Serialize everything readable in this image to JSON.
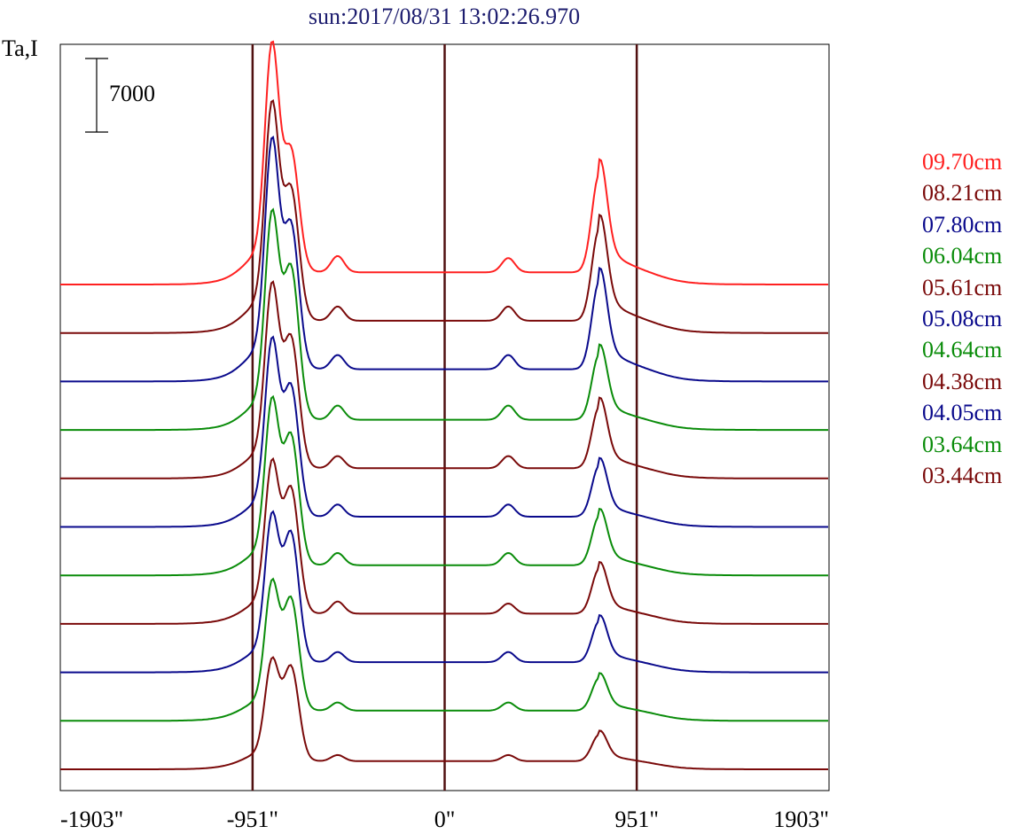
{
  "title": "sun:2017/08/31 13:02:26.970",
  "ylabel": "Ta,I",
  "colors": {
    "red": "#ff2020",
    "maroon": "#7a0a0a",
    "navy": "#0a0a8c",
    "green": "#0a8c0a",
    "vline": "#501010"
  },
  "chart_data": {
    "type": "line",
    "title": "sun:2017/08/31 13:02:26.970",
    "ylabel": "Ta,I",
    "xlabel": "",
    "xlim": [
      -1903,
      1903
    ],
    "x_unit": "arcsec",
    "x_ticks": [
      {
        "value": -1903,
        "label": "-1903\""
      },
      {
        "value": -951,
        "label": "-951\""
      },
      {
        "value": 0,
        "label": "0\""
      },
      {
        "value": 951,
        "label": "951\""
      },
      {
        "value": 1903,
        "label": "1903\""
      }
    ],
    "vertical_lines": [
      -951,
      0,
      951
    ],
    "scale_bar": {
      "value": 7000,
      "label": "7000"
    },
    "series": [
      {
        "name": "09.70cm",
        "color": "#ff2020",
        "baseline_index": 0,
        "amp": {
          "p1": 1.0,
          "p2": 0.55,
          "b1": 0.08,
          "b2": 0.07,
          "r": 0.48,
          "plateau": 0.06
        }
      },
      {
        "name": "08.21cm",
        "color": "#7a0a0a",
        "baseline_index": 1,
        "amp": {
          "p1": 0.95,
          "p2": 0.6,
          "b1": 0.07,
          "b2": 0.07,
          "r": 0.45,
          "plateau": 0.06
        }
      },
      {
        "name": "07.80cm",
        "color": "#0a0a8c",
        "baseline_index": 2,
        "amp": {
          "p1": 1.0,
          "p2": 0.66,
          "b1": 0.07,
          "b2": 0.07,
          "r": 0.43,
          "plateau": 0.06
        }
      },
      {
        "name": "06.04cm",
        "color": "#0a8c0a",
        "baseline_index": 3,
        "amp": {
          "p1": 0.9,
          "p2": 0.7,
          "b1": 0.07,
          "b2": 0.07,
          "r": 0.32,
          "plateau": 0.05
        }
      },
      {
        "name": "05.61cm",
        "color": "#7a0a0a",
        "baseline_index": 4,
        "amp": {
          "p1": 0.8,
          "p2": 0.6,
          "b1": 0.06,
          "b2": 0.06,
          "r": 0.3,
          "plateau": 0.05
        }
      },
      {
        "name": "05.08cm",
        "color": "#0a0a8c",
        "baseline_index": 5,
        "amp": {
          "p1": 0.77,
          "p2": 0.6,
          "b1": 0.06,
          "b2": 0.06,
          "r": 0.25,
          "plateau": 0.05
        }
      },
      {
        "name": "04.64cm",
        "color": "#0a8c0a",
        "baseline_index": 6,
        "amp": {
          "p1": 0.72,
          "p2": 0.6,
          "b1": 0.06,
          "b2": 0.06,
          "r": 0.24,
          "plateau": 0.05
        }
      },
      {
        "name": "04.38cm",
        "color": "#7a0a0a",
        "baseline_index": 7,
        "amp": {
          "p1": 0.66,
          "p2": 0.58,
          "b1": 0.06,
          "b2": 0.05,
          "r": 0.22,
          "plateau": 0.05
        }
      },
      {
        "name": "04.05cm",
        "color": "#0a0a8c",
        "baseline_index": 8,
        "amp": {
          "p1": 0.64,
          "p2": 0.6,
          "b1": 0.05,
          "b2": 0.05,
          "r": 0.2,
          "plateau": 0.05
        }
      },
      {
        "name": "03.64cm",
        "color": "#0a8c0a",
        "baseline_index": 9,
        "amp": {
          "p1": 0.56,
          "p2": 0.52,
          "b1": 0.04,
          "b2": 0.04,
          "r": 0.16,
          "plateau": 0.05
        }
      },
      {
        "name": "03.44cm",
        "color": "#7a0a0a",
        "baseline_index": 10,
        "amp": {
          "p1": 0.44,
          "p2": 0.44,
          "b1": 0.03,
          "b2": 0.03,
          "r": 0.13,
          "plateau": 0.04
        }
      }
    ]
  }
}
